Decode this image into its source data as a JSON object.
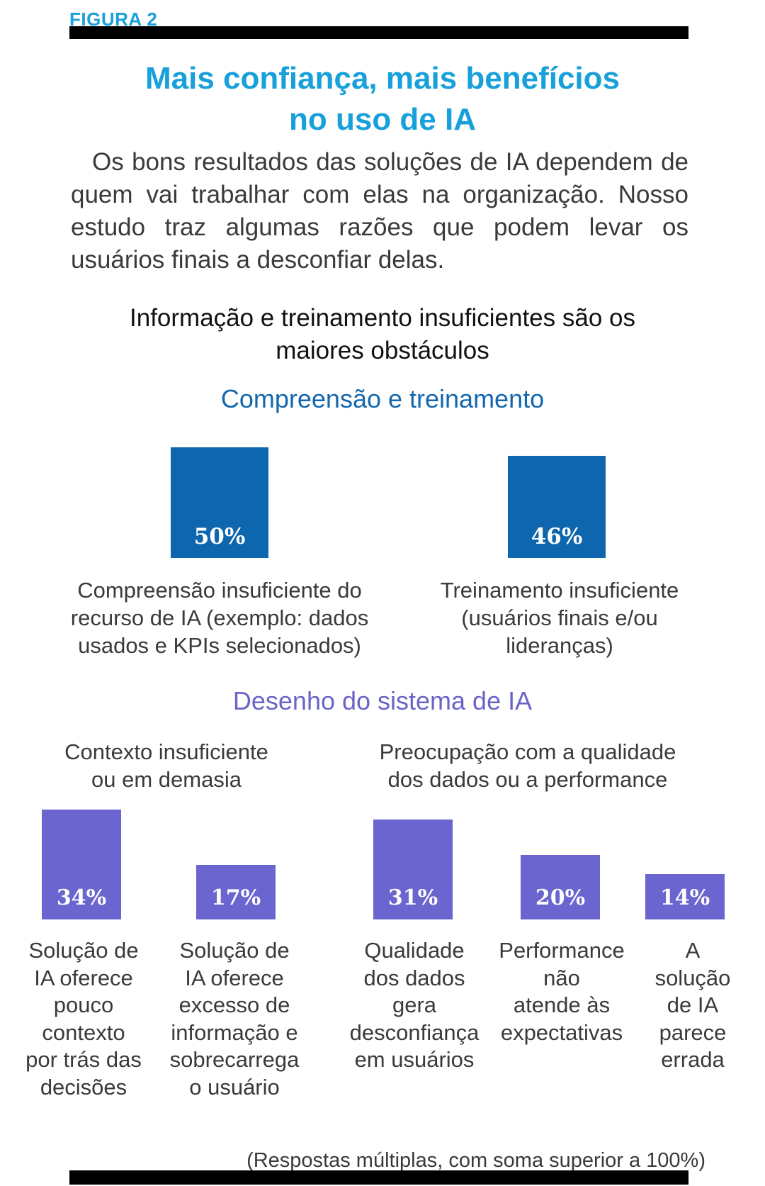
{
  "figure_label": "FIGURA 2",
  "title": [
    "Mais confiança, mais benefícios",
    "no uso de IA"
  ],
  "intro": "Os bons resultados das soluções de IA dependem de quem vai trabalhar com elas na organização. Nosso estudo traz algumas razões que podem levar os usuários finais a desconfiar delas.",
  "subtitle": [
    "Informação e treinamento insuficientes são os",
    "maiores obstáculos"
  ],
  "footnote": "(Respostas múltiplas, com soma superior a 100%)",
  "colors": {
    "accent_blue": "#1aa0dc",
    "bar_blue": "#0d66ae",
    "bar_purple": "#6b66cf",
    "rule": "#000000"
  },
  "chart_data": [
    {
      "type": "bar",
      "title": "Compreensão e treinamento",
      "categories": [
        "Compreensão insuficiente do recurso de IA (exemplo: dados usados e KPIs selecionados)",
        "Treinamento insuficiente (usuários finais e/ou lideranças)"
      ],
      "category_lines": [
        [
          "Compreensão insuficiente do",
          "recurso de IA (exemplo: dados",
          "usados e KPIs selecionados)"
        ],
        [
          "Treinamento insuficiente",
          "(usuários finais e/ou",
          "lideranças)"
        ]
      ],
      "values": [
        50,
        46
      ],
      "labels": [
        "50%",
        "46%"
      ],
      "unit": "%",
      "ylim": [
        0,
        100
      ],
      "grid": false
    },
    {
      "type": "bar",
      "title": "Desenho do sistema de IA",
      "groups": [
        {
          "name": "Contexto insuficiente ou em demasia",
          "name_lines": [
            "Contexto insuficiente",
            "ou em demasia"
          ],
          "indices": [
            0,
            1
          ]
        },
        {
          "name": "Preocupação com a qualidade dos dados ou a performance",
          "name_lines": [
            "Preocupação com a qualidade",
            "dos dados ou a performance"
          ],
          "indices": [
            2,
            3,
            4
          ]
        }
      ],
      "categories": [
        "Solução de IA oferece pouco contexto por trás das decisões",
        "Solução de IA oferece excesso de informação e sobrecarrega o usuário",
        "Qualidade dos dados gera desconfiança em usuários",
        "Performance não atende às expectativas",
        "A solução de IA parece errada"
      ],
      "category_lines": [
        [
          "Solução de",
          "IA oferece",
          "pouco",
          "contexto",
          "por trás das",
          "decisões"
        ],
        [
          "Solução de",
          "IA oferece",
          "excesso de",
          "informação e",
          "sobrecarrega",
          "o usuário"
        ],
        [
          "Qualidade",
          "dos dados",
          "gera",
          "desconfiança",
          "em usuários"
        ],
        [
          "Performance",
          "não",
          "atende às",
          "expectativas"
        ],
        [
          "A",
          "solução",
          "de IA",
          "parece",
          "errada"
        ]
      ],
      "values": [
        34,
        17,
        31,
        20,
        14
      ],
      "labels": [
        "34%",
        "17%",
        "31%",
        "20%",
        "14%"
      ],
      "unit": "%",
      "ylim": [
        0,
        100
      ],
      "grid": false
    }
  ]
}
